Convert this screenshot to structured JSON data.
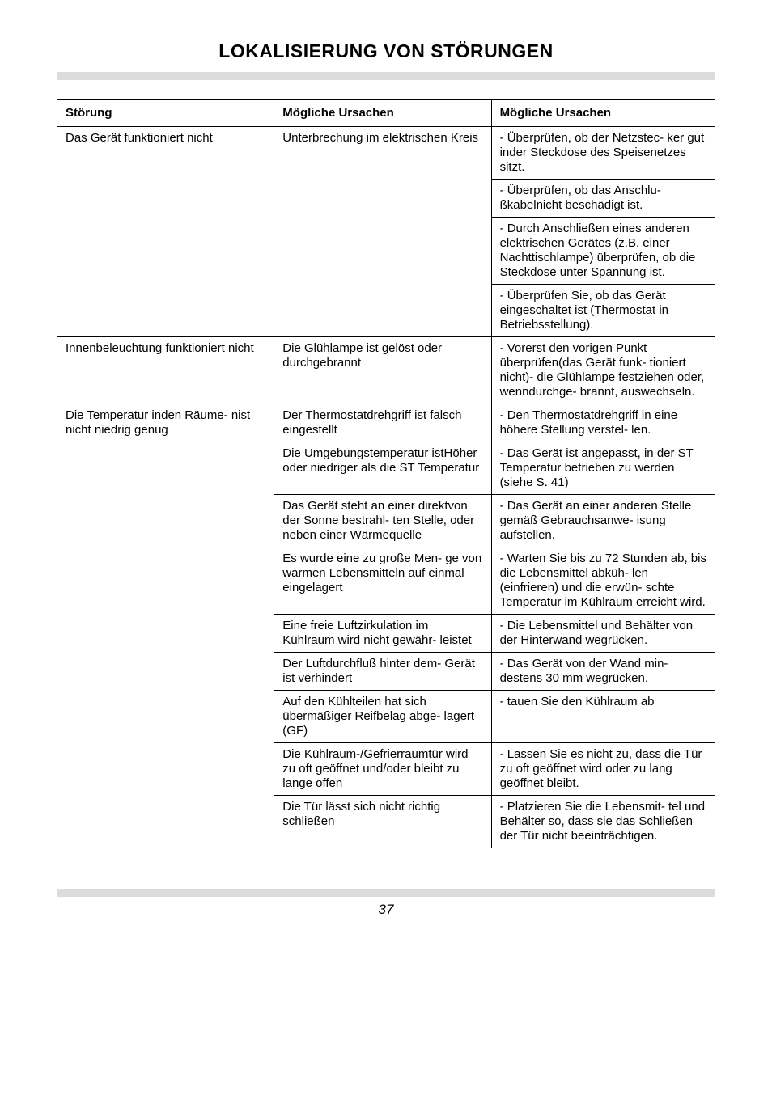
{
  "title": "LOKALISIERUNG VON STÖRUNGEN",
  "headers": [
    "Störung",
    "Mögliche Ursachen",
    "Mögliche Ursachen"
  ],
  "rows": [
    {
      "c1": "Das Gerät funktioniert nicht",
      "c1rs": 4,
      "c2": "Unterbrechung im elektrischen Kreis",
      "c2rs": 4,
      "c3": "- Überprüfen, ob der Netzstec-\nker gut inder Steckdose des Speisenetzes sitzt."
    },
    {
      "c3": "- Überprüfen, ob das Anschlu-\nßkabelnicht beschädigt ist."
    },
    {
      "c3": "- Durch Anschließen eines anderen elektrischen Gerätes (z.B. einer Nachttischlampe) überprüfen, ob die Steckdose unter Spannung ist."
    },
    {
      "c3": "- Überprüfen Sie, ob das Gerät eingeschaltet ist (Thermostat in Betriebsstellung)."
    },
    {
      "c1": "Innenbeleuchtung funktioniert nicht",
      "c1rs": 1,
      "c2": "Die Glühlampe ist gelöst oder durchgebrannt",
      "c2rs": 1,
      "c3": "- Vorerst den vorigen Punkt überprüfen(das Gerät funk-\ntioniert nicht)- die Glühlampe festziehen oder, wenndurchge-\nbrannt, auswechseln."
    },
    {
      "c1": "Die Temperatur inden Räume-\nnist nicht niedrig genug",
      "c1rs": 9,
      "c2": "Der Thermostatdrehgriff ist falsch eingestellt",
      "c2rs": 1,
      "c3": "- Den Thermostatdrehgriff in eine höhere Stellung verstel-\nlen."
    },
    {
      "c2": "Die Umgebungstemperatur istHöher oder niedriger als die ST Temperatur",
      "c2rs": 1,
      "c3": "- Das Gerät ist angepasst, in der ST Temperatur betrieben zu werden (siehe S. 41)"
    },
    {
      "c2": "Das Gerät steht an einer direktvon der Sonne bestrahl-\nten Stelle, oder neben einer Wärmequelle",
      "c2rs": 1,
      "c3": "- Das Gerät an einer anderen Stelle gemäß Gebrauchsanwe-\nisung aufstellen."
    },
    {
      "c2": "Es wurde eine zu große Men-\nge von warmen Lebensmitteln auf einmal eingelagert",
      "c2rs": 1,
      "c3": "- Warten Sie bis zu 72 Stunden ab, bis die Lebensmittel abküh-\nlen (einfrieren) und die erwün-\nschte Temperatur im Kühlraum erreicht wird."
    },
    {
      "c2": "Eine freie Luftzirkulation im Kühlraum wird nicht gewähr-\nleistet",
      "c2rs": 1,
      "c3": "- Die Lebensmittel und Behälter von der Hinterwand wegrücken."
    },
    {
      "c2": "Der Luftdurchfluß hinter dem-\nGerät ist verhindert",
      "c2rs": 1,
      "c3": "- Das Gerät von der Wand min-\ndestens  30 mm wegrücken."
    },
    {
      "c2": "Auf den Kühlteilen hat sich übermäßiger Reifbelag abge-\nlagert (GF)",
      "c2rs": 1,
      "c3": "- tauen Sie den Kühlraum ab"
    },
    {
      "c2": "Die Kühlraum-/Gefrierraumtür wird zu oft geöffnet und/oder bleibt zu lange offen",
      "c2rs": 1,
      "c3": "- Lassen Sie es nicht zu, dass die Tür zu oft geöffnet wird oder zu lang geöffnet bleibt."
    },
    {
      "c2": "Die Tür lässt sich nicht richtig schließen",
      "c2rs": 1,
      "c3": "- Platzieren Sie die Lebensmit-\ntel und Behälter so, dass sie das Schließen der Tür nicht beeinträchtigen."
    }
  ],
  "pageNumber": "37"
}
